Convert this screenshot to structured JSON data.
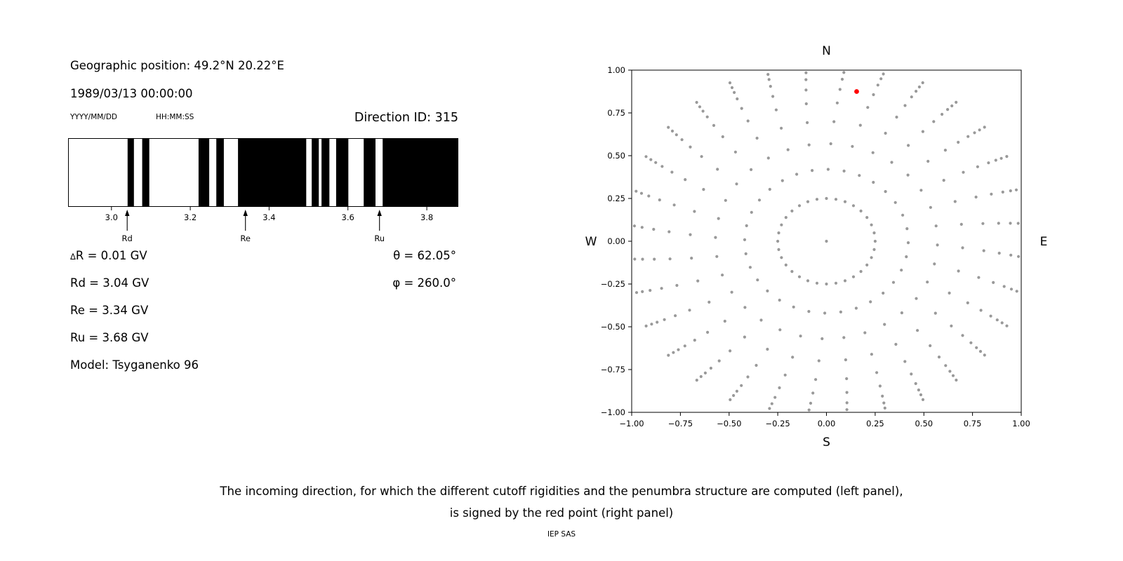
{
  "header": {
    "geo_position": "Geographic position: 49.2°N 20.22°E",
    "datetime": "1989/03/13 00:00:00",
    "date_format_label": "YYYY/MM/DD",
    "time_format_label": "HH:MM:SS",
    "direction_id": "Direction ID: 315"
  },
  "info": {
    "delta_symbol": "Δ",
    "delta_rest": "R = 0.01 GV",
    "rd": "Rd = 3.04 GV",
    "re": "Re = 3.34 GV",
    "ru": "Ru = 3.68 GV",
    "model": "Model: Tsyganenko 96",
    "theta": "θ = 62.05°",
    "phi": "φ = 260.0°"
  },
  "caption": {
    "line1": "The incoming direction, for which the different cutoff rigidities and the penumbra structure are computed (left panel),",
    "line2": "is signed by the red point (right panel)",
    "credit": "IEP SAS"
  },
  "chart_data": [
    {
      "name": "penumbra",
      "type": "bar",
      "title": "",
      "xlabel": "",
      "xlim": [
        2.89,
        3.88
      ],
      "xticks": [
        3.0,
        3.2,
        3.4,
        3.6,
        3.8
      ],
      "bar_color": "#000000",
      "black_intervals_gv": [
        [
          3.041,
          3.057
        ],
        [
          3.078,
          3.096
        ],
        [
          3.221,
          3.248
        ],
        [
          3.266,
          3.285
        ],
        [
          3.321,
          3.494
        ],
        [
          3.508,
          3.526
        ],
        [
          3.533,
          3.553
        ],
        [
          3.57,
          3.601
        ],
        [
          3.64,
          3.67
        ],
        [
          3.688,
          3.88
        ]
      ],
      "markers": [
        {
          "label": "Rd",
          "x": 3.04
        },
        {
          "label": "Re",
          "x": 3.34
        },
        {
          "label": "Ru",
          "x": 3.68
        }
      ]
    },
    {
      "name": "sky_map",
      "type": "scatter",
      "title": "",
      "xlabel": "",
      "ylabel": "",
      "xlim": [
        -1.0,
        1.0
      ],
      "ylim": [
        -1.0,
        1.0
      ],
      "xticks": [
        -1.0,
        -0.75,
        -0.5,
        -0.25,
        0.0,
        0.25,
        0.5,
        0.75,
        1.0
      ],
      "yticks": [
        -1.0,
        -0.75,
        -0.5,
        -0.25,
        0.0,
        0.25,
        0.5,
        0.75,
        1.0
      ],
      "compass_labels": {
        "top": "N",
        "bottom": "S",
        "left": "W",
        "right": "E"
      },
      "grid": false,
      "legend": false,
      "dot_color": "#999999",
      "pattern": {
        "azimuth_count": 32,
        "spoke_radii": [
          0.25,
          0.42,
          0.57,
          0.7,
          0.81,
          0.89,
          0.95,
          0.99,
          1.02,
          1.05
        ],
        "curvature_deg": 7,
        "center_dot": true
      },
      "red_point": {
        "x": 0.155,
        "y": 0.875,
        "color": "#ff0000"
      }
    }
  ]
}
